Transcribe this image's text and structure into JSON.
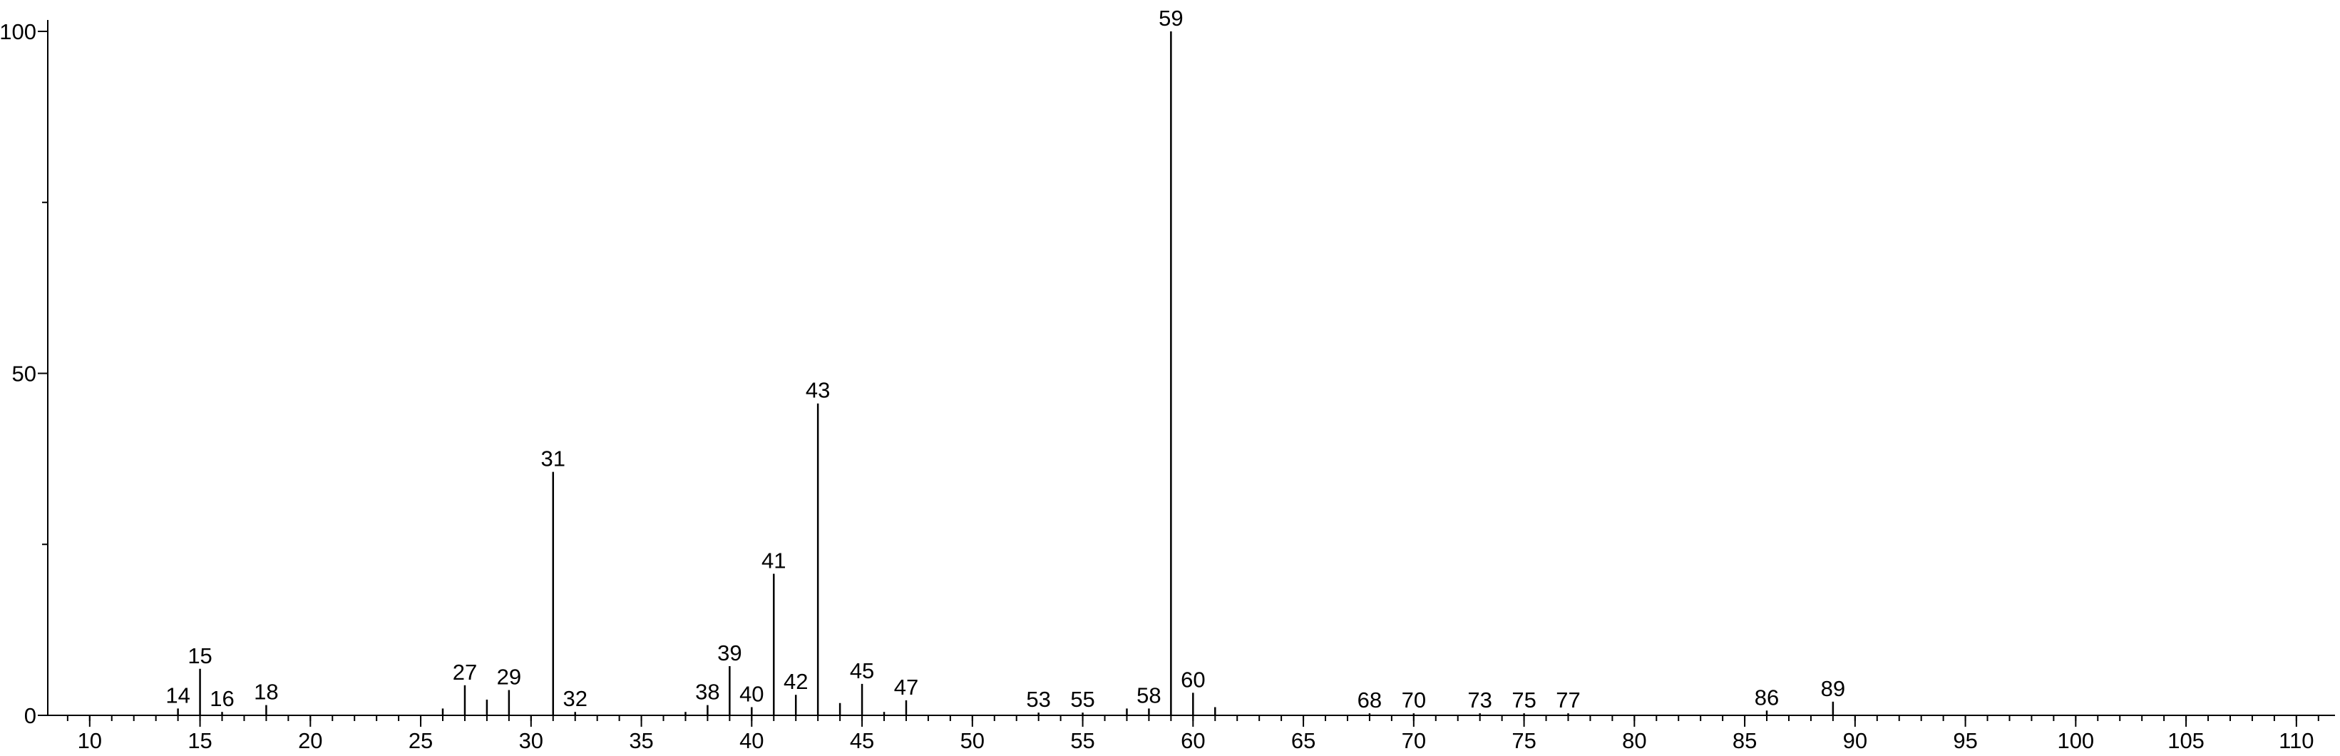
{
  "chart_data": {
    "type": "stem",
    "x": [
      14,
      15,
      16,
      18,
      26,
      27,
      28,
      29,
      31,
      32,
      37,
      38,
      39,
      40,
      41,
      42,
      43,
      44,
      45,
      46,
      47,
      53,
      55,
      57,
      58,
      59,
      60,
      61,
      68,
      70,
      73,
      75,
      77,
      86,
      89
    ],
    "values": [
      1,
      6.8,
      0.5,
      1.5,
      1,
      4.4,
      2.3,
      3.7,
      35.6,
      0.5,
      0.5,
      1.5,
      7.2,
      1.2,
      20.7,
      3,
      45.6,
      1.8,
      4.6,
      0.5,
      2.2,
      0.4,
      0.4,
      1,
      1,
      100,
      3.3,
      1.2,
      0.3,
      0.3,
      0.3,
      0.3,
      0.3,
      0.7,
      2
    ],
    "labels": [
      14,
      15,
      16,
      18,
      null,
      27,
      null,
      29,
      31,
      32,
      null,
      38,
      39,
      40,
      41,
      42,
      43,
      null,
      45,
      null,
      47,
      53,
      55,
      null,
      58,
      59,
      60,
      null,
      68,
      70,
      73,
      75,
      77,
      86,
      89
    ],
    "color": "#000000",
    "xlim": [
      8.1,
      111.75
    ],
    "xticks": [
      10,
      15,
      20,
      25,
      30,
      35,
      40,
      45,
      50,
      55,
      60,
      65,
      70,
      75,
      80,
      85,
      90,
      95,
      100,
      105,
      110
    ],
    "xminorticks": [
      9,
      10,
      11,
      12,
      13,
      14,
      15,
      16,
      17,
      18,
      19,
      20,
      21,
      22,
      23,
      24,
      25,
      26,
      27,
      28,
      29,
      30,
      31,
      32,
      33,
      34,
      35,
      36,
      37,
      38,
      39,
      40,
      41,
      42,
      43,
      44,
      45,
      46,
      47,
      48,
      49,
      50,
      51,
      52,
      53,
      54,
      55,
      56,
      57,
      58,
      59,
      60,
      61,
      62,
      63,
      64,
      65,
      66,
      67,
      68,
      69,
      70,
      71,
      72,
      73,
      74,
      75,
      76,
      77,
      78,
      79,
      80,
      81,
      82,
      83,
      84,
      85,
      86,
      87,
      88,
      89,
      90,
      91,
      92,
      93,
      94,
      95,
      96,
      97,
      98,
      99,
      100,
      101,
      102,
      103,
      104,
      105,
      106,
      107,
      108,
      109,
      110,
      111
    ],
    "ylim": [
      0,
      100
    ],
    "yticks": [
      0,
      50,
      100
    ],
    "yminorticks": [
      25,
      75
    ]
  }
}
